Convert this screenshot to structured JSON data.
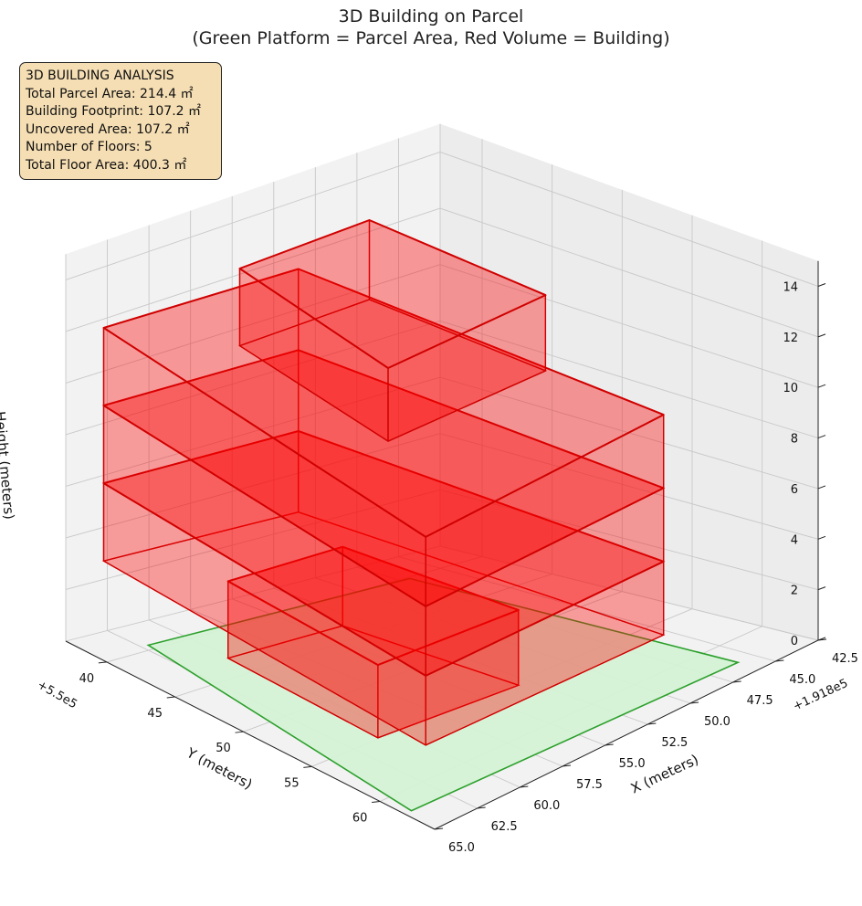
{
  "title": {
    "line1": "3D Building on Parcel",
    "line2": "(Green Platform = Parcel Area, Red Volume = Building)"
  },
  "info_box": {
    "heading": "3D BUILDING ANALYSIS",
    "lines": [
      "Total Parcel Area: 214.4 ㎡",
      "Building Footprint: 107.2 ㎡",
      "Uncovered Area: 107.2 ㎡",
      "Number of Floors: 5",
      "Total Floor Area: 400.3 ㎡"
    ]
  },
  "colors": {
    "parcel_fill": "#d5f2d5",
    "parcel_edge": "#2ca02c",
    "building_fill": "#ff0000",
    "building_edge": "#d00000",
    "pane": "#f2f2f2",
    "grid": "#c8c8c8"
  },
  "chart_data": {
    "type": "3d-prism",
    "x_axis": {
      "label": "X (meters)",
      "offset_text": "+1.918e5",
      "ticks": [
        "42.5",
        "45.0",
        "47.5",
        "50.0",
        "52.5",
        "55.0",
        "57.5",
        "60.0",
        "62.5",
        "65.0"
      ],
      "range": [
        42.5,
        65.0
      ]
    },
    "y_axis": {
      "label": "Y (meters)",
      "offset_text": "+5.5e5",
      "ticks": [
        "40",
        "45",
        "50",
        "55",
        "60"
      ],
      "range": [
        37,
        64
      ]
    },
    "z_axis": {
      "label": "Height (meters)",
      "ticks": [
        "0",
        "2",
        "4",
        "6",
        "8",
        "10",
        "12",
        "14"
      ],
      "range": [
        0,
        15
      ]
    },
    "grid": true,
    "parcel": [
      [
        45.9,
        62.4
      ],
      [
        47.0,
        40.2
      ],
      [
        62.1,
        39.5
      ],
      [
        64.6,
        61.8
      ]
    ],
    "floors": [
      {
        "z": [
          0,
          3.0
        ],
        "polygon": [
          [
            53.1,
            55.4
          ],
          [
            53.6,
            43.3
          ],
          [
            60.2,
            43.0
          ],
          [
            61.0,
            54.9
          ]
        ]
      },
      {
        "z": [
          3.0,
          6.0
        ],
        "polygon": [
          [
            51.0,
            63.3
          ],
          [
            52.1,
            38.3
          ],
          [
            63.3,
            37.7
          ],
          [
            64.4,
            62.6
          ]
        ]
      },
      {
        "z": [
          6.0,
          9.0
        ],
        "polygon": [
          [
            51.0,
            63.3
          ],
          [
            52.1,
            38.3
          ],
          [
            63.3,
            37.7
          ],
          [
            64.4,
            62.6
          ]
        ]
      },
      {
        "z": [
          9.0,
          12.0
        ],
        "polygon": [
          [
            51.0,
            63.3
          ],
          [
            52.1,
            38.3
          ],
          [
            63.3,
            37.7
          ],
          [
            64.4,
            62.6
          ]
        ]
      },
      {
        "z": [
          12.0,
          15.0
        ],
        "polygon": [
          [
            51.5,
            55.4
          ],
          [
            52.0,
            43.3
          ],
          [
            59.5,
            43.0
          ],
          [
            60.4,
            54.9
          ]
        ]
      }
    ]
  }
}
